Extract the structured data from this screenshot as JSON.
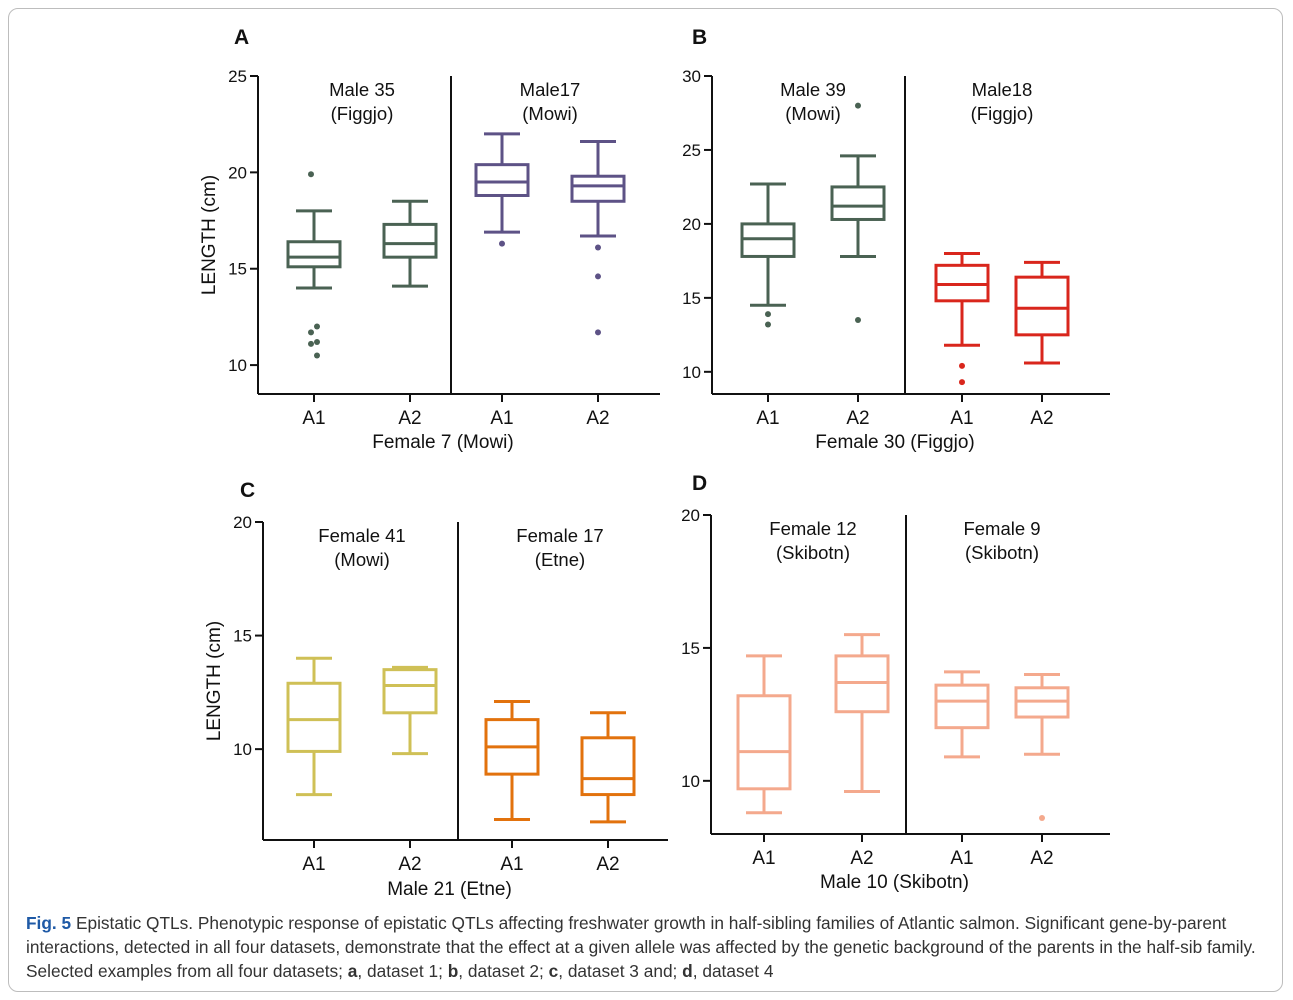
{
  "chart_data": [
    {
      "panel": "A",
      "type": "boxplot",
      "ylabel": "LENGTH (cm)",
      "xlabel": "Female 7 (Mowi)",
      "ylim": [
        8.5,
        25
      ],
      "yticks": [
        10,
        15,
        20,
        25
      ],
      "groups": [
        {
          "title": [
            "Male 35",
            "(Figgjo)"
          ],
          "color": "#4a6253",
          "boxes": [
            {
              "label": "A1",
              "whisker_low": 14.0,
              "q1": 15.1,
              "median": 15.6,
              "q3": 16.4,
              "whisker_high": 18.0,
              "outliers": [
                19.9,
                12.0,
                11.7,
                11.2,
                11.1,
                10.5
              ]
            },
            {
              "label": "A2",
              "whisker_low": 14.1,
              "q1": 15.6,
              "median": 16.3,
              "q3": 17.3,
              "whisker_high": 18.5,
              "outliers": []
            }
          ]
        },
        {
          "title": [
            "Male17",
            "(Mowi)"
          ],
          "color": "#5d5286",
          "boxes": [
            {
              "label": "A1",
              "whisker_low": 16.9,
              "q1": 18.8,
              "median": 19.5,
              "q3": 20.4,
              "whisker_high": 22.0,
              "outliers": [
                16.3
              ]
            },
            {
              "label": "A2",
              "whisker_low": 16.7,
              "q1": 18.5,
              "median": 19.3,
              "q3": 19.8,
              "whisker_high": 21.6,
              "outliers": [
                16.1,
                14.6,
                11.7
              ]
            }
          ]
        }
      ]
    },
    {
      "panel": "B",
      "type": "boxplot",
      "ylabel": "",
      "xlabel": "Female 30 (Figgjo)",
      "ylim": [
        8.5,
        30
      ],
      "yticks": [
        10,
        15,
        20,
        25,
        30
      ],
      "groups": [
        {
          "title": [
            "Male 39",
            "(Mowi)"
          ],
          "color": "#4a6253",
          "boxes": [
            {
              "label": "A1",
              "whisker_low": 14.5,
              "q1": 17.8,
              "median": 19.0,
              "q3": 20.0,
              "whisker_high": 22.7,
              "outliers": [
                13.9,
                13.2
              ]
            },
            {
              "label": "A2",
              "whisker_low": 17.8,
              "q1": 20.3,
              "median": 21.2,
              "q3": 22.5,
              "whisker_high": 24.6,
              "outliers": [
                28.0,
                13.5
              ]
            }
          ]
        },
        {
          "title": [
            "Male18",
            "(Figgjo)"
          ],
          "color": "#d9261c",
          "boxes": [
            {
              "label": "A1",
              "whisker_low": 11.8,
              "q1": 14.8,
              "median": 15.9,
              "q3": 17.2,
              "whisker_high": 18.0,
              "outliers": [
                10.4,
                9.3
              ]
            },
            {
              "label": "A2",
              "whisker_low": 10.6,
              "q1": 12.5,
              "median": 14.3,
              "q3": 16.4,
              "whisker_high": 17.4,
              "outliers": []
            }
          ]
        }
      ]
    },
    {
      "panel": "C",
      "type": "boxplot",
      "ylabel": "LENGTH (cm)",
      "xlabel": "Male 21 (Etne)",
      "ylim": [
        6.0,
        20
      ],
      "yticks": [
        10,
        15,
        20
      ],
      "groups": [
        {
          "title": [
            "Female 41",
            "(Mowi)"
          ],
          "color": "#cfc056",
          "boxes": [
            {
              "label": "A1",
              "whisker_low": 8.0,
              "q1": 9.9,
              "median": 11.3,
              "q3": 12.9,
              "whisker_high": 14.0,
              "outliers": []
            },
            {
              "label": "A2",
              "whisker_low": 9.8,
              "q1": 11.6,
              "median": 12.8,
              "q3": 13.5,
              "whisker_high": 13.6,
              "outliers": []
            }
          ]
        },
        {
          "title": [
            "Female 17",
            "(Etne)"
          ],
          "color": "#e2720d",
          "boxes": [
            {
              "label": "A1",
              "whisker_low": 6.9,
              "q1": 8.9,
              "median": 10.1,
              "q3": 11.3,
              "whisker_high": 12.1,
              "outliers": []
            },
            {
              "label": "A2",
              "whisker_low": 6.8,
              "q1": 8.0,
              "median": 8.7,
              "q3": 10.5,
              "whisker_high": 11.6,
              "outliers": []
            }
          ]
        }
      ]
    },
    {
      "panel": "D",
      "type": "boxplot",
      "ylabel": "",
      "xlabel": "Male 10 (Skibotn)",
      "ylim": [
        8.0,
        20
      ],
      "yticks": [
        10,
        15,
        20
      ],
      "groups": [
        {
          "title": [
            "Female 12",
            "(Skibotn)"
          ],
          "color": "#f4a98d",
          "boxes": [
            {
              "label": "A1",
              "whisker_low": 8.8,
              "q1": 9.7,
              "median": 11.1,
              "q3": 13.2,
              "whisker_high": 14.7,
              "outliers": []
            },
            {
              "label": "A2",
              "whisker_low": 9.6,
              "q1": 12.6,
              "median": 13.7,
              "q3": 14.7,
              "whisker_high": 15.5,
              "outliers": []
            }
          ]
        },
        {
          "title": [
            "Female 9",
            "(Skibotn)"
          ],
          "color": "#f4a98d",
          "boxes": [
            {
              "label": "A1",
              "whisker_low": 10.9,
              "q1": 12.0,
              "median": 13.0,
              "q3": 13.6,
              "whisker_high": 14.1,
              "outliers": []
            },
            {
              "label": "A2",
              "whisker_low": 11.0,
              "q1": 12.4,
              "median": 13.0,
              "q3": 13.5,
              "whisker_high": 14.0,
              "outliers": [
                8.6
              ]
            }
          ]
        }
      ]
    }
  ],
  "caption": {
    "figure_label": "Fig. 5",
    "text_intro": " Epistatic QTLs. Phenotypic response of epistatic QTLs affecting freshwater growth in half-sibling families of Atlantic salmon. Significant gene-by-parent interactions, detected in all four datasets, demonstrate that the effect at a given allele was affected by the genetic background of the parents in the half-sib family. Selected examples from all four datasets; ",
    "a": "a",
    "text_a": ", dataset 1; ",
    "b": "b",
    "text_b": ", dataset 2; ",
    "c": "c",
    "text_c": ", dataset 3 and; ",
    "d": "d",
    "text_d": ", dataset 4"
  }
}
